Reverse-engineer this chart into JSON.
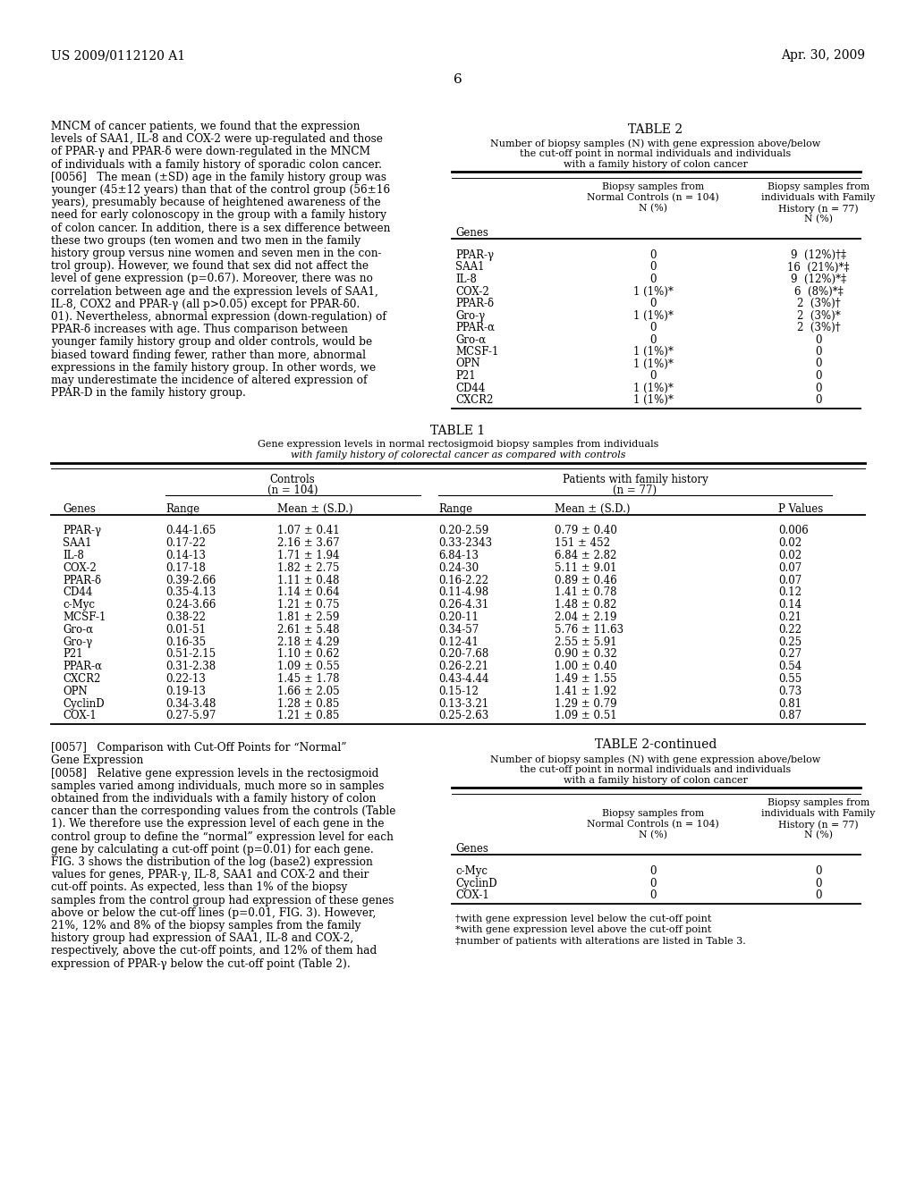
{
  "header_left": "US 2009/0112120 A1",
  "header_right": "Apr. 30, 2009",
  "page_number": "6",
  "background_color": "#ffffff",
  "text_color": "#000000",
  "left_text_lines": [
    "MNCM of cancer patients, we found that the expression",
    "levels of SAA1, IL-8 and COX-2 were up-regulated and those",
    "of PPAR-γ and PPAR-δ were down-regulated in the MNCM",
    "of individuals with a family history of sporadic colon cancer.",
    "[0056]   The mean (±SD) age in the family history group was",
    "younger (45±12 years) than that of the control group (56±16",
    "years), presumably because of heightened awareness of the",
    "need for early colonoscopy in the group with a family history",
    "of colon cancer. In addition, there is a sex difference between",
    "these two groups (ten women and two men in the family",
    "history group versus nine women and seven men in the con-",
    "trol group). However, we found that sex did not affect the",
    "level of gene expression (p=0.67). Moreover, there was no",
    "correlation between age and the expression levels of SAA1,",
    "IL-8, COX2 and PPAR-γ (all p>0.05) except for PPAR-δ0.",
    "01). Nevertheless, abnormal expression (down-regulation) of",
    "PPAR-δ increases with age. Thus comparison between",
    "younger family history group and older controls, would be",
    "biased toward finding fewer, rather than more, abnormal",
    "expressions in the family history group. In other words, we",
    "may underestimate the incidence of altered expression of",
    "PPAR-D in the family history group."
  ],
  "table1_data": [
    [
      "PPAR-γ",
      "0.44-1.65",
      "1.07 ± 0.41",
      "0.20-2.59",
      "0.79 ± 0.40",
      "0.006"
    ],
    [
      "SAA1",
      "0.17-22",
      "2.16 ± 3.67",
      "0.33-2343",
      "151 ± 452",
      "0.02"
    ],
    [
      "IL-8",
      "0.14-13",
      "1.71 ± 1.94",
      "6.84-13",
      "6.84 ± 2.82",
      "0.02"
    ],
    [
      "COX-2",
      "0.17-18",
      "1.82 ± 2.75",
      "0.24-30",
      "5.11 ± 9.01",
      "0.07"
    ],
    [
      "PPAR-δ",
      "0.39-2.66",
      "1.11 ± 0.48",
      "0.16-2.22",
      "0.89 ± 0.46",
      "0.07"
    ],
    [
      "CD44",
      "0.35-4.13",
      "1.14 ± 0.64",
      "0.11-4.98",
      "1.41 ± 0.78",
      "0.12"
    ],
    [
      "c-Myc",
      "0.24-3.66",
      "1.21 ± 0.75",
      "0.26-4.31",
      "1.48 ± 0.82",
      "0.14"
    ],
    [
      "MCSF-1",
      "0.38-22",
      "1.81 ± 2.59",
      "0.20-11",
      "2.04 ± 2.19",
      "0.21"
    ],
    [
      "Gro-α",
      "0.01-51",
      "2.61 ± 5.48",
      "0.34-57",
      "5.76 ± 11.63",
      "0.22"
    ],
    [
      "Gro-γ",
      "0.16-35",
      "2.18 ± 4.29",
      "0.12-41",
      "2.55 ± 5.91",
      "0.25"
    ],
    [
      "P21",
      "0.51-2.15",
      "1.10 ± 0.62",
      "0.20-7.68",
      "0.90 ± 0.32",
      "0.27"
    ],
    [
      "PPAR-α",
      "0.31-2.38",
      "1.09 ± 0.55",
      "0.26-2.21",
      "1.00 ± 0.40",
      "0.54"
    ],
    [
      "CXCR2",
      "0.22-13",
      "1.45 ± 1.78",
      "0.43-4.44",
      "1.49 ± 1.55",
      "0.55"
    ],
    [
      "OPN",
      "0.19-13",
      "1.66 ± 2.05",
      "0.15-12",
      "1.41 ± 1.92",
      "0.73"
    ],
    [
      "CyclinD",
      "0.34-3.48",
      "1.28 ± 0.85",
      "0.13-3.21",
      "1.29 ± 0.79",
      "0.81"
    ],
    [
      "COX-1",
      "0.27-5.97",
      "1.21 ± 0.85",
      "0.25-2.63",
      "1.09 ± 0.51",
      "0.87"
    ]
  ],
  "table2_data": [
    [
      "PPAR-γ",
      "0",
      "9  (12%)†‡"
    ],
    [
      "SAA1",
      "0",
      "16  (21%)*‡"
    ],
    [
      "IL-8",
      "0",
      "9  (12%)*‡"
    ],
    [
      "COX-2",
      "1 (1%)*",
      "6  (8%)*‡"
    ],
    [
      "PPAR-δ",
      "0",
      "2  (3%)†"
    ],
    [
      "Gro-γ",
      "1 (1%)*",
      "2  (3%)*"
    ],
    [
      "PPAR-α",
      "0",
      "2  (3%)†"
    ],
    [
      "Gro-α",
      "0",
      "0"
    ],
    [
      "MCSF-1",
      "1 (1%)*",
      "0"
    ],
    [
      "OPN",
      "1 (1%)*",
      "0"
    ],
    [
      "P21",
      "0",
      "0"
    ],
    [
      "CD44",
      "1 (1%)*",
      "0"
    ],
    [
      "CXCR2",
      "1 (1%)*",
      "0"
    ]
  ],
  "table2cont_data": [
    [
      "c-Myc",
      "0",
      "0"
    ],
    [
      "CyclinD",
      "0",
      "0"
    ],
    [
      "COX-1",
      "0",
      "0"
    ]
  ],
  "bottom_left_lines": [
    "[0057]   Comparison with Cut-Off Points for “Normal”",
    "Gene Expression",
    "[0058]   Relative gene expression levels in the rectosigmoid",
    "samples varied among individuals, much more so in samples",
    "obtained from the individuals with a family history of colon",
    "cancer than the corresponding values from the controls (Table",
    "1). We therefore use the expression level of each gene in the",
    "control group to define the “normal” expression level for each",
    "gene by calculating a cut-off point (p=0.01) for each gene.",
    "FIG. 3 shows the distribution of the log (base2) expression",
    "values for genes, PPAR-γ, IL-8, SAA1 and COX-2 and their",
    "cut-off points. As expected, less than 1% of the biopsy",
    "samples from the control group had expression of these genes",
    "above or below the cut-off lines (p=0.01, FIG. 3). However,",
    "21%, 12% and 8% of the biopsy samples from the family",
    "history group had expression of SAA1, IL-8 and COX-2,",
    "respectively, above the cut-off points, and 12% of them had",
    "expression of PPAR-γ below the cut-off point (Table 2)."
  ],
  "footnotes": [
    "†with gene expression level below the cut-off point",
    "*with gene expression level above the cut-off point",
    "‡number of patients with alterations are listed in Table 3."
  ]
}
